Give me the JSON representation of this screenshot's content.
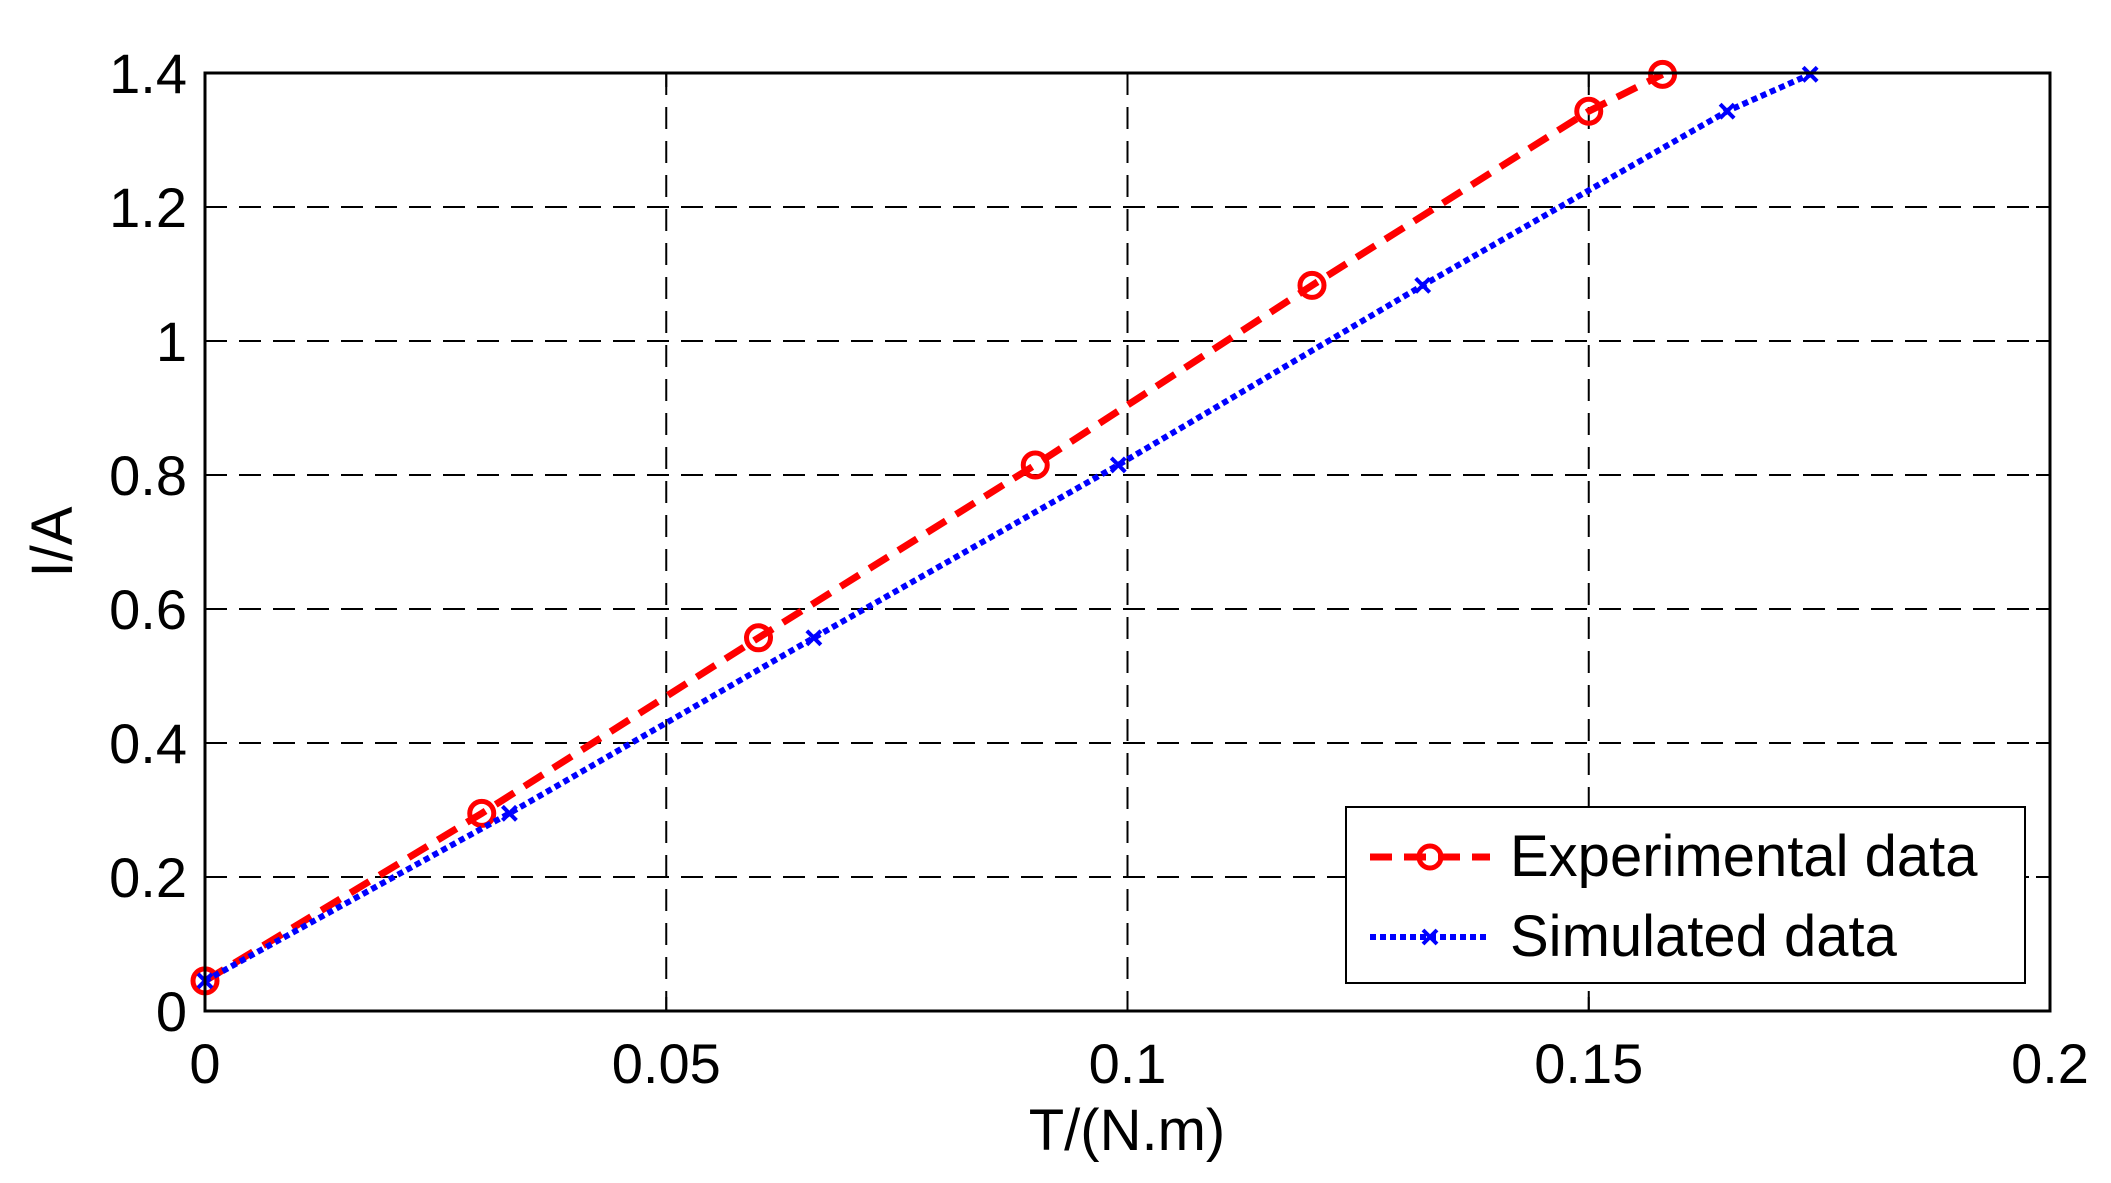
{
  "chart_data": {
    "type": "line",
    "title": "",
    "xlabel": "T/(N.m)",
    "ylabel": "I/A",
    "xlim": [
      0,
      0.2
    ],
    "ylim": [
      0,
      1.4
    ],
    "xticks": [
      0,
      0.05,
      0.1,
      0.15,
      0.2
    ],
    "xtick_labels": [
      "0",
      "0.05",
      "0.1",
      "0.15",
      "0.2"
    ],
    "yticks": [
      0,
      0.2,
      0.4,
      0.6,
      0.8,
      1,
      1.2,
      1.4
    ],
    "ytick_labels": [
      "0",
      "0.2",
      "0.4",
      "0.6",
      "0.8",
      "1",
      "1.2",
      "1.4"
    ],
    "grid": true,
    "legend_position": "bottom-right",
    "series": [
      {
        "name": "Experimental data",
        "color": "#ff0000",
        "line_style": "dashed",
        "marker": "circle",
        "x": [
          0,
          0.03,
          0.06,
          0.09,
          0.12,
          0.15,
          0.158
        ],
        "y": [
          0.045,
          0.295,
          0.557,
          0.815,
          1.083,
          1.343,
          1.398
        ]
      },
      {
        "name": "Simulated data",
        "color": "#0000ff",
        "line_style": "dotted",
        "marker": "x",
        "x": [
          0,
          0.033,
          0.066,
          0.099,
          0.132,
          0.165,
          0.174
        ],
        "y": [
          0.045,
          0.295,
          0.557,
          0.815,
          1.083,
          1.343,
          1.398
        ]
      }
    ]
  }
}
